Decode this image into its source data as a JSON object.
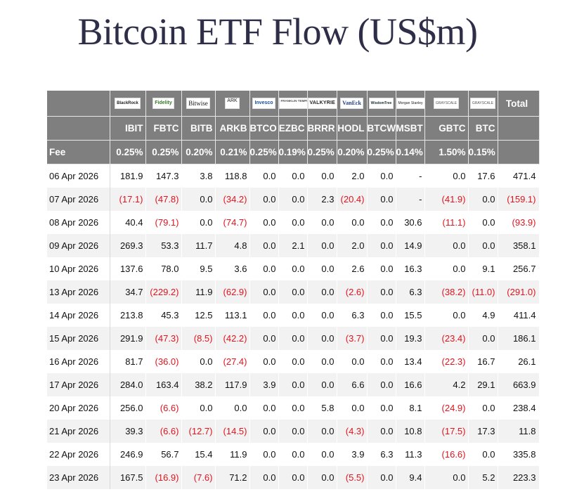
{
  "title": "Bitcoin ETF Flow (US$m)",
  "table": {
    "fee_label": "Fee",
    "total_label": "Total",
    "columns": [
      {
        "logo": "BlackRock",
        "ticker": "IBIT",
        "fee": "0.25%"
      },
      {
        "logo": "Fidelity",
        "ticker": "FBTC",
        "fee": "0.25%"
      },
      {
        "logo": "Bitwise",
        "ticker": "BITB",
        "fee": "0.20%"
      },
      {
        "logo": "ARK",
        "ticker": "ARKB",
        "fee": "0.21%"
      },
      {
        "logo": "Invesco",
        "ticker": "BTCO",
        "fee": "0.25%"
      },
      {
        "logo": "FRANKLIN TEMPLETON",
        "ticker": "EZBC",
        "fee": "0.19%"
      },
      {
        "logo": "VALKYRIE",
        "ticker": "BRRR",
        "fee": "0.25%"
      },
      {
        "logo": "VanEck",
        "ticker": "HODL",
        "fee": "0.20%"
      },
      {
        "logo": "WisdomTree",
        "ticker": "BTCW",
        "fee": "0.25%"
      },
      {
        "logo": "Morgan Stanley",
        "ticker": "MSBT",
        "fee": "0.14%"
      },
      {
        "logo": "GRAYSCALE",
        "ticker": "GBTC",
        "fee": "1.50%"
      },
      {
        "logo": "GRAYSCALE",
        "ticker": "BTC",
        "fee": "0.15%"
      }
    ],
    "rows": [
      {
        "date": "06 Apr 2026",
        "values": [
          "181.9",
          "147.3",
          "3.8",
          "118.8",
          "0.0",
          "0.0",
          "0.0",
          "2.0",
          "0.0",
          "-",
          "0.0",
          "17.6"
        ],
        "total": "471.4"
      },
      {
        "date": "07 Apr 2026",
        "values": [
          "(17.1)",
          "(47.8)",
          "0.0",
          "(34.2)",
          "0.0",
          "0.0",
          "2.3",
          "(20.4)",
          "0.0",
          "-",
          "(41.9)",
          "0.0"
        ],
        "total": "(159.1)"
      },
      {
        "date": "08 Apr 2026",
        "values": [
          "40.4",
          "(79.1)",
          "0.0",
          "(74.7)",
          "0.0",
          "0.0",
          "0.0",
          "0.0",
          "0.0",
          "30.6",
          "(11.1)",
          "0.0"
        ],
        "total": "(93.9)"
      },
      {
        "date": "09 Apr 2026",
        "values": [
          "269.3",
          "53.3",
          "11.7",
          "4.8",
          "0.0",
          "2.1",
          "0.0",
          "2.0",
          "0.0",
          "14.9",
          "0.0",
          "0.0"
        ],
        "total": "358.1"
      },
      {
        "date": "10 Apr 2026",
        "values": [
          "137.6",
          "78.0",
          "9.5",
          "3.6",
          "0.0",
          "0.0",
          "0.0",
          "2.6",
          "0.0",
          "16.3",
          "0.0",
          "9.1"
        ],
        "total": "256.7"
      },
      {
        "date": "13 Apr 2026",
        "values": [
          "34.7",
          "(229.2)",
          "11.9",
          "(62.9)",
          "0.0",
          "0.0",
          "0.0",
          "(2.6)",
          "0.0",
          "6.3",
          "(38.2)",
          "(11.0)"
        ],
        "total": "(291.0)"
      },
      {
        "date": "14 Apr 2026",
        "values": [
          "213.8",
          "45.3",
          "12.5",
          "113.1",
          "0.0",
          "0.0",
          "0.0",
          "6.3",
          "0.0",
          "15.5",
          "0.0",
          "4.9"
        ],
        "total": "411.4"
      },
      {
        "date": "15 Apr 2026",
        "values": [
          "291.9",
          "(47.3)",
          "(8.5)",
          "(42.2)",
          "0.0",
          "0.0",
          "0.0",
          "(3.7)",
          "0.0",
          "19.3",
          "(23.4)",
          "0.0"
        ],
        "total": "186.1"
      },
      {
        "date": "16 Apr 2026",
        "values": [
          "81.7",
          "(36.0)",
          "0.0",
          "(27.4)",
          "0.0",
          "0.0",
          "0.0",
          "0.0",
          "0.0",
          "13.4",
          "(22.3)",
          "16.7"
        ],
        "total": "26.1"
      },
      {
        "date": "17 Apr 2026",
        "values": [
          "284.0",
          "163.4",
          "38.2",
          "117.9",
          "3.9",
          "0.0",
          "0.0",
          "6.6",
          "0.0",
          "16.6",
          "4.2",
          "29.1"
        ],
        "total": "663.9"
      },
      {
        "date": "20 Apr 2026",
        "values": [
          "256.0",
          "(6.6)",
          "0.0",
          "0.0",
          "0.0",
          "0.0",
          "5.8",
          "0.0",
          "0.0",
          "8.1",
          "(24.9)",
          "0.0"
        ],
        "total": "238.4"
      },
      {
        "date": "21 Apr 2026",
        "values": [
          "39.3",
          "(6.6)",
          "(12.7)",
          "(14.5)",
          "0.0",
          "0.0",
          "0.0",
          "(4.3)",
          "0.0",
          "10.8",
          "(17.5)",
          "17.3"
        ],
        "total": "11.8"
      },
      {
        "date": "22 Apr 2026",
        "values": [
          "246.9",
          "56.7",
          "15.4",
          "11.9",
          "0.0",
          "0.0",
          "0.0",
          "3.9",
          "6.3",
          "11.3",
          "(16.6)",
          "0.0"
        ],
        "total": "335.8"
      },
      {
        "date": "23 Apr 2026",
        "values": [
          "167.5",
          "(16.9)",
          "(7.6)",
          "71.2",
          "0.0",
          "0.0",
          "0.0",
          "(5.5)",
          "0.0",
          "9.4",
          "0.0",
          "5.2"
        ],
        "total": "223.3"
      }
    ]
  },
  "colors": {
    "header_bg": "#7f7f7f",
    "negative": "#e0141e",
    "title": "#2e2e48"
  }
}
